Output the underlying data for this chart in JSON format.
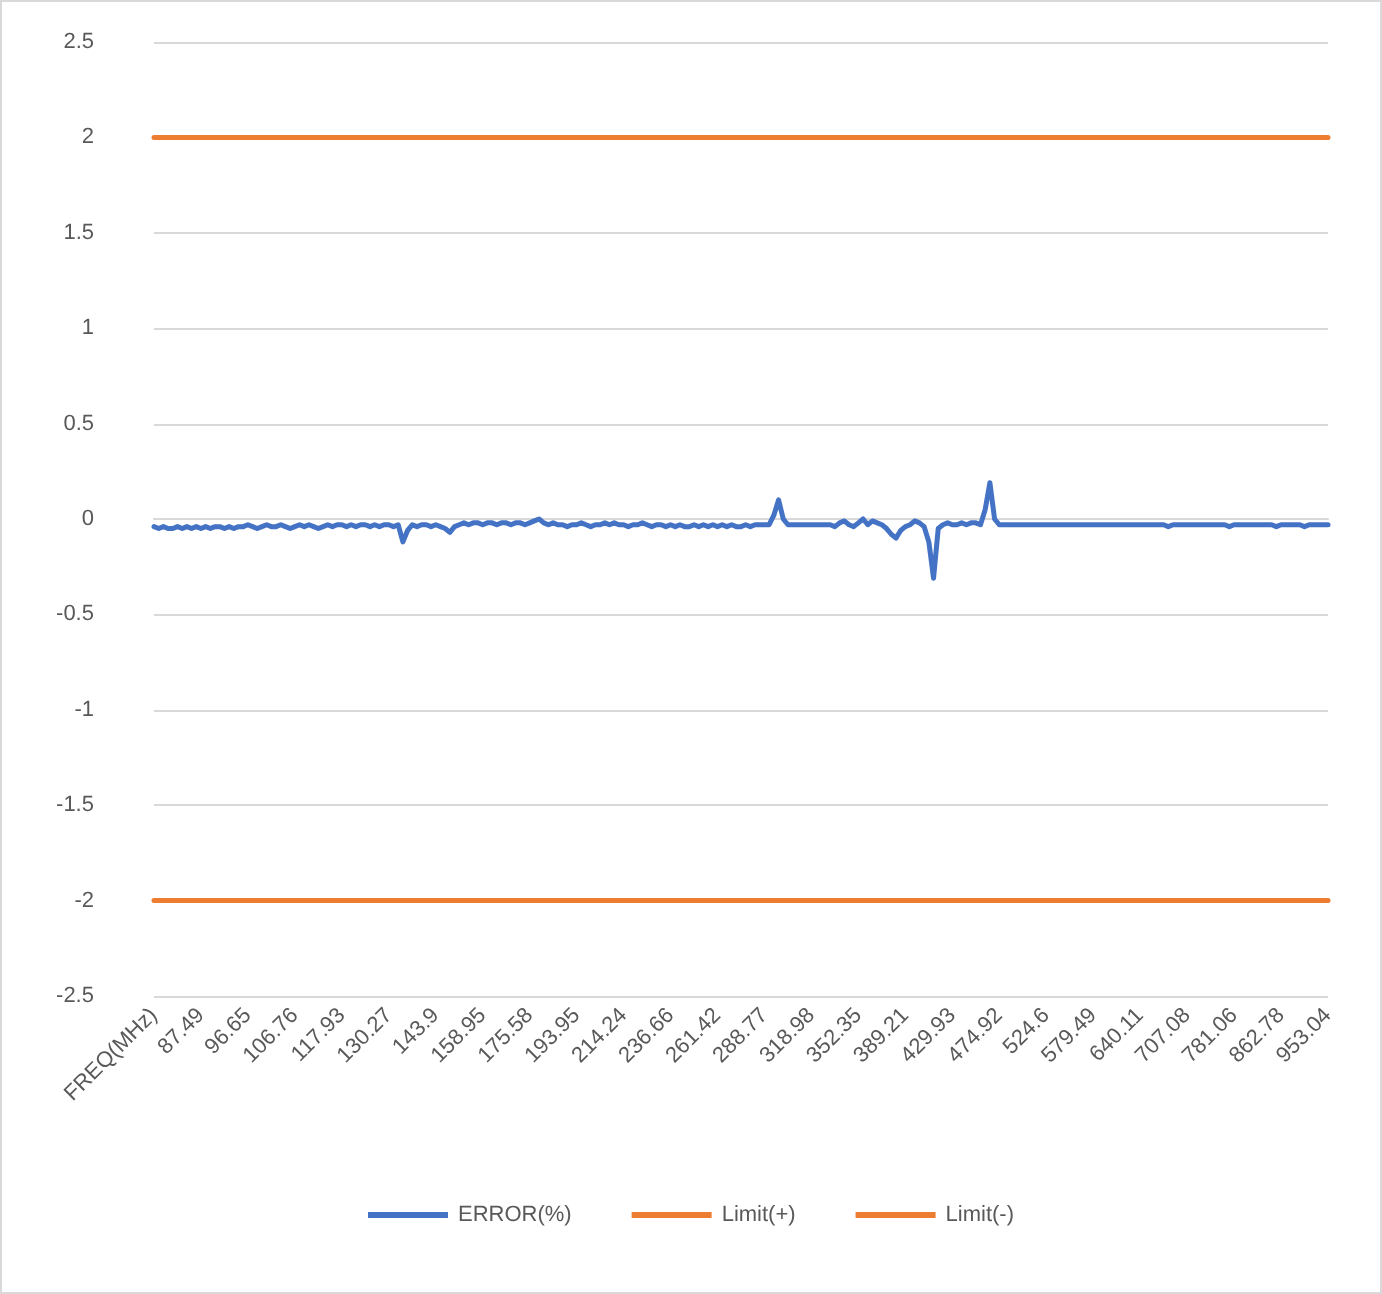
{
  "chart_data": {
    "type": "line",
    "categories": [
      "FREQ(MHz)",
      null,
      null,
      null,
      null,
      null,
      null,
      null,
      null,
      null,
      "87.49",
      null,
      null,
      null,
      null,
      null,
      null,
      null,
      null,
      null,
      "96.65",
      null,
      null,
      null,
      null,
      null,
      null,
      null,
      null,
      null,
      "106.76",
      null,
      null,
      null,
      null,
      null,
      null,
      null,
      null,
      null,
      "117.93",
      null,
      null,
      null,
      null,
      null,
      null,
      null,
      null,
      null,
      "130.27",
      null,
      null,
      null,
      null,
      null,
      null,
      null,
      null,
      null,
      "143.9",
      null,
      null,
      null,
      null,
      null,
      null,
      null,
      null,
      null,
      "158.95",
      null,
      null,
      null,
      null,
      null,
      null,
      null,
      null,
      null,
      "175.58",
      null,
      null,
      null,
      null,
      null,
      null,
      null,
      null,
      null,
      "193.95",
      null,
      null,
      null,
      null,
      null,
      null,
      null,
      null,
      null,
      "214.24",
      null,
      null,
      null,
      null,
      null,
      null,
      null,
      null,
      null,
      "236.66",
      null,
      null,
      null,
      null,
      null,
      null,
      null,
      null,
      null,
      "261.42",
      null,
      null,
      null,
      null,
      null,
      null,
      null,
      null,
      null,
      "288.77",
      null,
      null,
      null,
      null,
      null,
      null,
      null,
      null,
      null,
      "318.98",
      null,
      null,
      null,
      null,
      null,
      null,
      null,
      null,
      null,
      "352.35",
      null,
      null,
      null,
      null,
      null,
      null,
      null,
      null,
      null,
      "389.21",
      null,
      null,
      null,
      null,
      null,
      null,
      null,
      null,
      null,
      "429.93",
      null,
      null,
      null,
      null,
      null,
      null,
      null,
      null,
      null,
      "474.92",
      null,
      null,
      null,
      null,
      null,
      null,
      null,
      null,
      null,
      "524.6",
      null,
      null,
      null,
      null,
      null,
      null,
      null,
      null,
      null,
      "579.49",
      null,
      null,
      null,
      null,
      null,
      null,
      null,
      null,
      null,
      "640.11",
      null,
      null,
      null,
      null,
      null,
      null,
      null,
      null,
      null,
      "707.08",
      null,
      null,
      null,
      null,
      null,
      null,
      null,
      null,
      null,
      "781.06",
      null,
      null,
      null,
      null,
      null,
      null,
      null,
      null,
      null,
      "862.78",
      null,
      null,
      null,
      null,
      null,
      null,
      null,
      null,
      null,
      "953.04"
    ],
    "series": [
      {
        "name": "ERROR(%)",
        "color": "#4472c4",
        "values": [
          -0.04,
          -0.05,
          -0.04,
          -0.05,
          -0.05,
          -0.04,
          -0.05,
          -0.04,
          -0.05,
          -0.04,
          -0.05,
          -0.04,
          -0.05,
          -0.04,
          -0.04,
          -0.05,
          -0.04,
          -0.05,
          -0.04,
          -0.04,
          -0.03,
          -0.04,
          -0.05,
          -0.04,
          -0.03,
          -0.04,
          -0.04,
          -0.03,
          -0.04,
          -0.05,
          -0.04,
          -0.03,
          -0.04,
          -0.03,
          -0.04,
          -0.05,
          -0.04,
          -0.03,
          -0.04,
          -0.03,
          -0.03,
          -0.04,
          -0.03,
          -0.04,
          -0.03,
          -0.03,
          -0.04,
          -0.03,
          -0.04,
          -0.03,
          -0.03,
          -0.04,
          -0.03,
          -0.12,
          -0.06,
          -0.03,
          -0.04,
          -0.03,
          -0.03,
          -0.04,
          -0.03,
          -0.04,
          -0.05,
          -0.07,
          -0.04,
          -0.03,
          -0.02,
          -0.03,
          -0.02,
          -0.02,
          -0.03,
          -0.02,
          -0.02,
          -0.03,
          -0.02,
          -0.02,
          -0.03,
          -0.02,
          -0.02,
          -0.03,
          -0.02,
          -0.01,
          0.0,
          -0.02,
          -0.03,
          -0.02,
          -0.03,
          -0.03,
          -0.04,
          -0.03,
          -0.03,
          -0.02,
          -0.03,
          -0.04,
          -0.03,
          -0.03,
          -0.02,
          -0.03,
          -0.02,
          -0.03,
          -0.03,
          -0.04,
          -0.03,
          -0.03,
          -0.02,
          -0.03,
          -0.04,
          -0.03,
          -0.03,
          -0.04,
          -0.03,
          -0.04,
          -0.03,
          -0.04,
          -0.04,
          -0.03,
          -0.04,
          -0.03,
          -0.04,
          -0.03,
          -0.04,
          -0.03,
          -0.04,
          -0.03,
          -0.04,
          -0.04,
          -0.03,
          -0.04,
          -0.03,
          -0.03,
          -0.03,
          -0.03,
          0.02,
          0.1,
          0.0,
          -0.03,
          -0.03,
          -0.03,
          -0.03,
          -0.03,
          -0.03,
          -0.03,
          -0.03,
          -0.03,
          -0.03,
          -0.04,
          -0.02,
          -0.01,
          -0.03,
          -0.04,
          -0.02,
          0.0,
          -0.03,
          -0.01,
          -0.02,
          -0.03,
          -0.05,
          -0.08,
          -0.1,
          -0.06,
          -0.04,
          -0.03,
          -0.01,
          -0.02,
          -0.04,
          -0.12,
          -0.31,
          -0.05,
          -0.03,
          -0.02,
          -0.03,
          -0.03,
          -0.02,
          -0.03,
          -0.02,
          -0.02,
          -0.03,
          0.05,
          0.19,
          0.0,
          -0.03,
          -0.03,
          -0.03,
          -0.03,
          -0.03,
          -0.03,
          -0.03,
          -0.03,
          -0.03,
          -0.03,
          -0.03,
          -0.03,
          -0.03,
          -0.03,
          -0.03,
          -0.03,
          -0.03,
          -0.03,
          -0.03,
          -0.03,
          -0.03,
          -0.03,
          -0.03,
          -0.03,
          -0.03,
          -0.03,
          -0.03,
          -0.03,
          -0.03,
          -0.03,
          -0.03,
          -0.03,
          -0.03,
          -0.03,
          -0.03,
          -0.03,
          -0.04,
          -0.03,
          -0.03,
          -0.03,
          -0.03,
          -0.03,
          -0.03,
          -0.03,
          -0.03,
          -0.03,
          -0.03,
          -0.03,
          -0.03,
          -0.04,
          -0.03,
          -0.03,
          -0.03,
          -0.03,
          -0.03,
          -0.03,
          -0.03,
          -0.03,
          -0.03,
          -0.04,
          -0.03,
          -0.03,
          -0.03,
          -0.03,
          -0.03,
          -0.04,
          -0.03,
          -0.03,
          -0.03,
          -0.03,
          -0.03
        ]
      },
      {
        "name": "Limit(+)",
        "color": "#ed7d31",
        "values": [
          2,
          2,
          2,
          2,
          2,
          2,
          2,
          2,
          2,
          2,
          2,
          2,
          2,
          2,
          2,
          2,
          2,
          2,
          2,
          2,
          2,
          2,
          2,
          2,
          2,
          2,
          2,
          2,
          2,
          2,
          2,
          2,
          2,
          2,
          2,
          2,
          2,
          2,
          2,
          2,
          2,
          2,
          2,
          2,
          2,
          2,
          2,
          2,
          2,
          2,
          2,
          2,
          2,
          2,
          2,
          2,
          2,
          2,
          2,
          2,
          2,
          2,
          2,
          2,
          2,
          2,
          2,
          2,
          2,
          2,
          2,
          2,
          2,
          2,
          2,
          2,
          2,
          2,
          2,
          2,
          2,
          2,
          2,
          2,
          2,
          2,
          2,
          2,
          2,
          2,
          2,
          2,
          2,
          2,
          2,
          2,
          2,
          2,
          2,
          2,
          2,
          2,
          2,
          2,
          2,
          2,
          2,
          2,
          2,
          2,
          2,
          2,
          2,
          2,
          2,
          2,
          2,
          2,
          2,
          2,
          2,
          2,
          2,
          2,
          2,
          2,
          2,
          2,
          2,
          2,
          2,
          2,
          2,
          2,
          2,
          2,
          2,
          2,
          2,
          2,
          2,
          2,
          2,
          2,
          2,
          2,
          2,
          2,
          2,
          2,
          2,
          2,
          2,
          2,
          2,
          2,
          2,
          2,
          2,
          2,
          2,
          2,
          2,
          2,
          2,
          2,
          2,
          2,
          2,
          2,
          2,
          2,
          2,
          2,
          2,
          2,
          2,
          2,
          2,
          2,
          2,
          2,
          2,
          2,
          2,
          2,
          2,
          2,
          2,
          2,
          2,
          2,
          2,
          2,
          2,
          2,
          2,
          2,
          2,
          2,
          2,
          2,
          2,
          2,
          2,
          2,
          2,
          2,
          2,
          2,
          2,
          2,
          2,
          2,
          2,
          2,
          2,
          2,
          2,
          2,
          2,
          2,
          2,
          2,
          2,
          2,
          2,
          2,
          2,
          2,
          2,
          2,
          2,
          2,
          2,
          2,
          2,
          2,
          2,
          2,
          2,
          2,
          2,
          2,
          2,
          2,
          2,
          2,
          2,
          2,
          2
        ]
      },
      {
        "name": "Limit(-)",
        "color": "#ed7d31",
        "values": [
          -2,
          -2,
          -2,
          -2,
          -2,
          -2,
          -2,
          -2,
          -2,
          -2,
          -2,
          -2,
          -2,
          -2,
          -2,
          -2,
          -2,
          -2,
          -2,
          -2,
          -2,
          -2,
          -2,
          -2,
          -2,
          -2,
          -2,
          -2,
          -2,
          -2,
          -2,
          -2,
          -2,
          -2,
          -2,
          -2,
          -2,
          -2,
          -2,
          -2,
          -2,
          -2,
          -2,
          -2,
          -2,
          -2,
          -2,
          -2,
          -2,
          -2,
          -2,
          -2,
          -2,
          -2,
          -2,
          -2,
          -2,
          -2,
          -2,
          -2,
          -2,
          -2,
          -2,
          -2,
          -2,
          -2,
          -2,
          -2,
          -2,
          -2,
          -2,
          -2,
          -2,
          -2,
          -2,
          -2,
          -2,
          -2,
          -2,
          -2,
          -2,
          -2,
          -2,
          -2,
          -2,
          -2,
          -2,
          -2,
          -2,
          -2,
          -2,
          -2,
          -2,
          -2,
          -2,
          -2,
          -2,
          -2,
          -2,
          -2,
          -2,
          -2,
          -2,
          -2,
          -2,
          -2,
          -2,
          -2,
          -2,
          -2,
          -2,
          -2,
          -2,
          -2,
          -2,
          -2,
          -2,
          -2,
          -2,
          -2,
          -2,
          -2,
          -2,
          -2,
          -2,
          -2,
          -2,
          -2,
          -2,
          -2,
          -2,
          -2,
          -2,
          -2,
          -2,
          -2,
          -2,
          -2,
          -2,
          -2,
          -2,
          -2,
          -2,
          -2,
          -2,
          -2,
          -2,
          -2,
          -2,
          -2,
          -2,
          -2,
          -2,
          -2,
          -2,
          -2,
          -2,
          -2,
          -2,
          -2,
          -2,
          -2,
          -2,
          -2,
          -2,
          -2,
          -2,
          -2,
          -2,
          -2,
          -2,
          -2,
          -2,
          -2,
          -2,
          -2,
          -2,
          -2,
          -2,
          -2,
          -2,
          -2,
          -2,
          -2,
          -2,
          -2,
          -2,
          -2,
          -2,
          -2,
          -2,
          -2,
          -2,
          -2,
          -2,
          -2,
          -2,
          -2,
          -2,
          -2,
          -2,
          -2,
          -2,
          -2,
          -2,
          -2,
          -2,
          -2,
          -2,
          -2,
          -2,
          -2,
          -2,
          -2,
          -2,
          -2,
          -2,
          -2,
          -2,
          -2,
          -2,
          -2,
          -2,
          -2,
          -2,
          -2,
          -2,
          -2,
          -2,
          -2,
          -2,
          -2,
          -2,
          -2,
          -2,
          -2,
          -2,
          -2,
          -2,
          -2,
          -2,
          -2,
          -2,
          -2,
          -2,
          -2,
          -2,
          -2,
          -2,
          -2,
          -2
        ]
      }
    ],
    "ylim": [
      -2.5,
      2.5
    ],
    "yticks": [
      -2.5,
      -2,
      -1.5,
      -1,
      -0.5,
      0,
      0.5,
      1,
      1.5,
      2,
      2.5
    ],
    "grid": "y",
    "legend": "bottom",
    "marker": "none",
    "line_style": "solid"
  }
}
